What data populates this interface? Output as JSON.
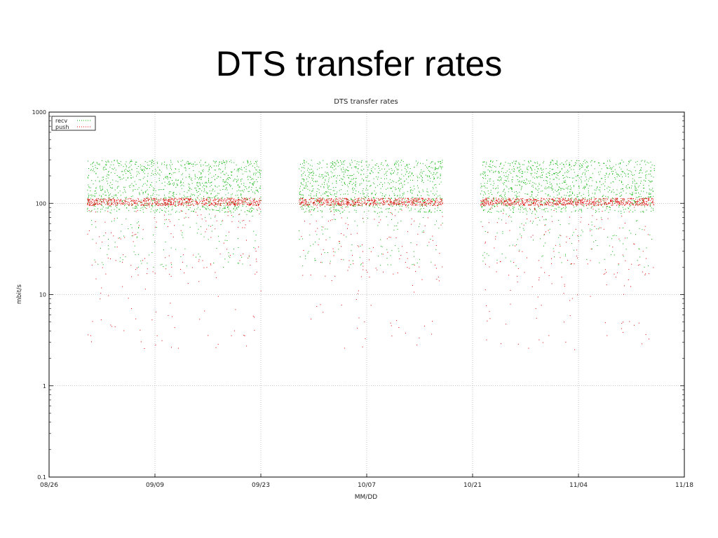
{
  "slide": {
    "title": "DTS transfer rates"
  },
  "chart_data": {
    "type": "scatter",
    "title": "DTS transfer rates",
    "xlabel": "MM/DD",
    "ylabel": "mbit/s",
    "y_scale": "log",
    "ylim": [
      0.1,
      1000
    ],
    "xlim": [
      "08/26",
      "11/18"
    ],
    "x_ticks": [
      "08/26",
      "09/09",
      "09/23",
      "10/07",
      "10/21",
      "11/04",
      "11/18"
    ],
    "y_ticks": [
      "0.1",
      "1",
      "10",
      "100",
      "1000"
    ],
    "grid": true,
    "legend_position": "top-left",
    "colors": {
      "recv": "#00b000",
      "push": "#e00000"
    },
    "series": [
      {
        "name": "recv",
        "typical_range_mbit_s": [
          80,
          300
        ],
        "active_periods": [
          [
            "08/31",
            "09/23"
          ],
          [
            "09/28",
            "10/17"
          ],
          [
            "10/22",
            "11/14"
          ]
        ]
      },
      {
        "name": "push",
        "typical_range_mbit_s": [
          95,
          115
        ],
        "active_periods": [
          [
            "08/31",
            "09/23"
          ],
          [
            "09/28",
            "10/17"
          ],
          [
            "10/22",
            "11/14"
          ]
        ]
      }
    ]
  }
}
